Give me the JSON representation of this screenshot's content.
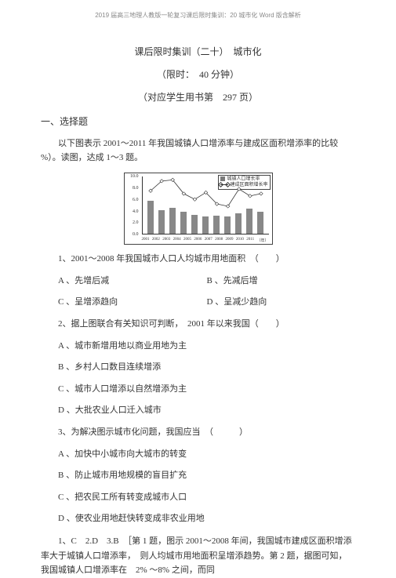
{
  "header": "2019 届高三地理人教版一轮复习课后限时集训：20 城市化 Word 版含解析",
  "title": "课后限时集训（二十）　城市化",
  "time_limit": "（限时：　40 分钟）",
  "page_ref": "（对应学生用书第　297 页）",
  "section1": "一、选择题",
  "intro": "以下图表示 2001～2011 年我国城镇人口增添率与建成区面积增添率的比较 %）。读图，达成 1～3 题。",
  "chart": {
    "legend1": "城镇人口增长率",
    "legend2": "建成区面积增长率",
    "y_ticks": [
      "10.0",
      "8.0",
      "6.0",
      "4.0",
      "2.0",
      "0.0"
    ],
    "x_labels": [
      "2001",
      "2002",
      "2003",
      "2004",
      "2005",
      "2006",
      "2007",
      "2008",
      "2009",
      "2010",
      "2011",
      "（年）"
    ],
    "bars": [
      5.8,
      4.2,
      4.5,
      3.8,
      3.3,
      3.0,
      3.2,
      3.1,
      3.6,
      4.4,
      3.8
    ],
    "line": [
      7.5,
      9.2,
      9.4,
      7.0,
      6.0,
      7.2,
      5.2,
      4.8,
      7.8,
      6.6,
      7.0
    ]
  },
  "q1": {
    "stem": "1、2001～2008 年我国城市人口人均城市用地面积　（　　）",
    "A": "A 、先增后减",
    "B": "B 、先减后增",
    "C": "C 、呈增添趋向",
    "D": "D 、呈减少趋向"
  },
  "q2": {
    "stem": "2、据上图联合有关知识可判断，　2001 年以来我国（　　）",
    "A": "A 、城市新增用地以商业用地为主",
    "B": "B 、乡村人口数目连续增添",
    "C": "C 、城市人口增添以自然增添为主",
    "D": "D 、大批农业人口迁入城市"
  },
  "q3": {
    "stem": "3、为解决图示城市化问题，我国应当　（　　　）",
    "A": "A 、加快中小城市向大城市的转变",
    "B": "B 、防止城市用地规模的盲目扩充",
    "C": "C 、把农民工所有转变成城市人口",
    "D": "D 、使农业用地赶快转变成非农业用地"
  },
  "answer": "1、C　2.D　3.B　［第 1 题，图示 2001～2008 年间，我国城市建成区面积增添率大于城镇人口增添率，　则人均城市用地面积呈增添趋势。第 2 题，据图可知，我国城镇人口增添率在　2% ～8% 之间，而同"
}
